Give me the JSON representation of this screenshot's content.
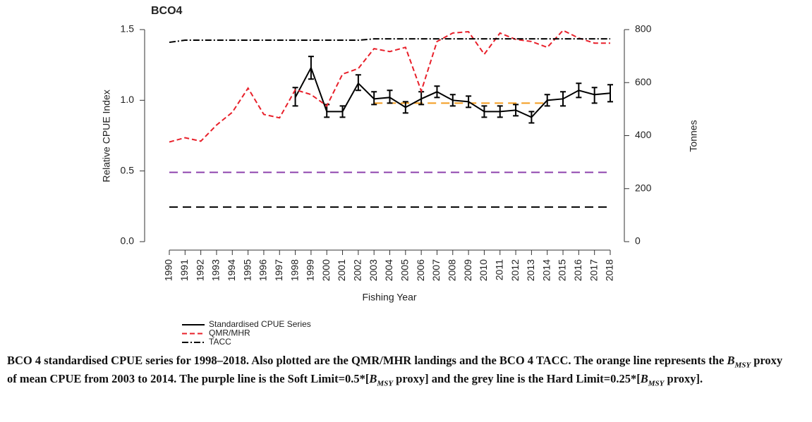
{
  "chart_data": {
    "type": "line",
    "title": "BCO4",
    "ylabel": "Relative CPUE Index",
    "y2label": "Tonnes",
    "xlabel": "Fishing Year",
    "x": [
      1990,
      1991,
      1992,
      1993,
      1994,
      1995,
      1996,
      1997,
      1998,
      1999,
      2000,
      2001,
      2002,
      2003,
      2004,
      2005,
      2006,
      2007,
      2008,
      2009,
      2010,
      2011,
      2012,
      2013,
      2014,
      2015,
      2016,
      2017,
      2018
    ],
    "xlim": [
      1990,
      2018
    ],
    "ylim": [
      0,
      1.5
    ],
    "yticks": [
      {
        "value": 0,
        "label": "0.0"
      },
      0.5,
      {
        "value": 1,
        "label": "1.0"
      },
      1.5
    ],
    "y2lim": [
      0,
      800
    ],
    "y2ticks": [
      0,
      200,
      400,
      600,
      800
    ],
    "series": [
      {
        "name": "Standardised CPUE Series",
        "color": "#000000",
        "linestyle": "solid",
        "axis": "y",
        "values": [
          null,
          null,
          null,
          null,
          null,
          null,
          null,
          null,
          1.02,
          1.23,
          0.92,
          0.92,
          1.12,
          1.01,
          1.02,
          0.95,
          1.01,
          1.06,
          1.0,
          0.99,
          0.92,
          0.92,
          0.93,
          0.88,
          1.0,
          1.01,
          1.07,
          1.04,
          1.05
        ],
        "lower": [
          null,
          null,
          null,
          null,
          null,
          null,
          null,
          null,
          0.96,
          1.15,
          0.88,
          0.88,
          1.07,
          0.97,
          0.98,
          0.91,
          0.97,
          1.02,
          0.96,
          0.95,
          0.88,
          0.88,
          0.89,
          0.84,
          0.96,
          0.96,
          1.02,
          0.98,
          0.99
        ],
        "upper": [
          null,
          null,
          null,
          null,
          null,
          null,
          null,
          null,
          1.09,
          1.31,
          0.97,
          0.96,
          1.18,
          1.06,
          1.07,
          0.99,
          1.06,
          1.1,
          1.04,
          1.03,
          0.96,
          0.96,
          0.97,
          0.92,
          1.04,
          1.06,
          1.12,
          1.09,
          1.11
        ]
      },
      {
        "name": "QMR/MHR",
        "color": "#e8202a",
        "linestyle": "dashed",
        "axis": "y2",
        "values": [
          376,
          392,
          379,
          440,
          488,
          579,
          480,
          467,
          573,
          555,
          512,
          632,
          653,
          728,
          717,
          733,
          568,
          755,
          787,
          792,
          707,
          787,
          763,
          755,
          733,
          797,
          768,
          749,
          749
        ]
      },
      {
        "name": "TACC",
        "color": "#000000",
        "linestyle": "dashdot",
        "axis": "y2",
        "values": [
          752,
          760,
          760,
          760,
          760,
          760,
          760,
          760,
          760,
          760,
          760,
          760,
          760,
          765,
          765,
          765,
          765,
          765,
          765,
          765,
          765,
          765,
          765,
          765,
          765,
          765,
          765,
          765,
          765
        ]
      }
    ],
    "hlines": [
      {
        "value": 0.98,
        "color": "#f39c1f",
        "from": 2003,
        "to": 2014
      },
      {
        "value": 0.49,
        "color": "#8e44ad",
        "from": 1990,
        "to": 2018
      },
      {
        "value": 0.245,
        "color": "#000000",
        "from": 1990,
        "to": 2018
      }
    ],
    "caption": [
      "BCO 4 standardised CPUE series for 1998–2018. Also plotted are the QMR/MHR landings and the BCO 4 TACC. The orange line represents the ",
      "B",
      "MSY",
      " proxy of mean CPUE from 2003 to 2014. The purple line is the Soft Limit=0.5*[",
      "B",
      "MSY",
      " proxy] and the grey line is the Hard Limit=0.25*[",
      "B",
      "MSY",
      " proxy]."
    ]
  }
}
